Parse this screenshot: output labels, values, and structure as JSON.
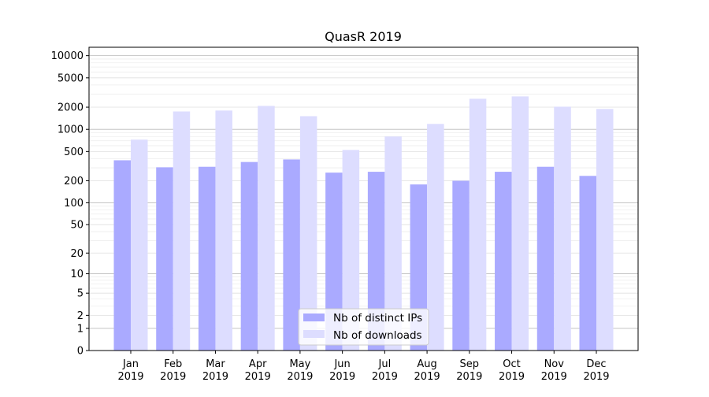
{
  "chart_data": {
    "type": "bar",
    "title": "QuasR 2019",
    "xlabel": "",
    "ylabel": "",
    "yscale": "symlog",
    "ylim": [
      0,
      13000
    ],
    "yticks": [
      0,
      1,
      2,
      5,
      10,
      20,
      50,
      100,
      200,
      500,
      1000,
      2000,
      5000,
      10000
    ],
    "ytick_labels": [
      "0",
      "1",
      "2",
      "5",
      "10",
      "20",
      "50",
      "100",
      "200",
      "500",
      "1000",
      "2000",
      "5000",
      "10000"
    ],
    "grid": true,
    "legend": "lower-center",
    "categories": [
      "Jan\n2019",
      "Feb\n2019",
      "Mar\n2019",
      "Apr\n2019",
      "May\n2019",
      "Jun\n2019",
      "Jul\n2019",
      "Aug\n2019",
      "Sep\n2019",
      "Oct\n2019",
      "Nov\n2019",
      "Dec\n2019"
    ],
    "series": [
      {
        "name": "Nb of distinct IPs",
        "color": "#aaaaff",
        "values": [
          380,
          305,
          310,
          360,
          390,
          258,
          265,
          178,
          200,
          265,
          310,
          233
        ]
      },
      {
        "name": "Nb of downloads",
        "color": "#ddddff",
        "values": [
          725,
          1750,
          1800,
          2080,
          1510,
          525,
          800,
          1185,
          2600,
          2800,
          2030,
          1890
        ]
      }
    ]
  }
}
